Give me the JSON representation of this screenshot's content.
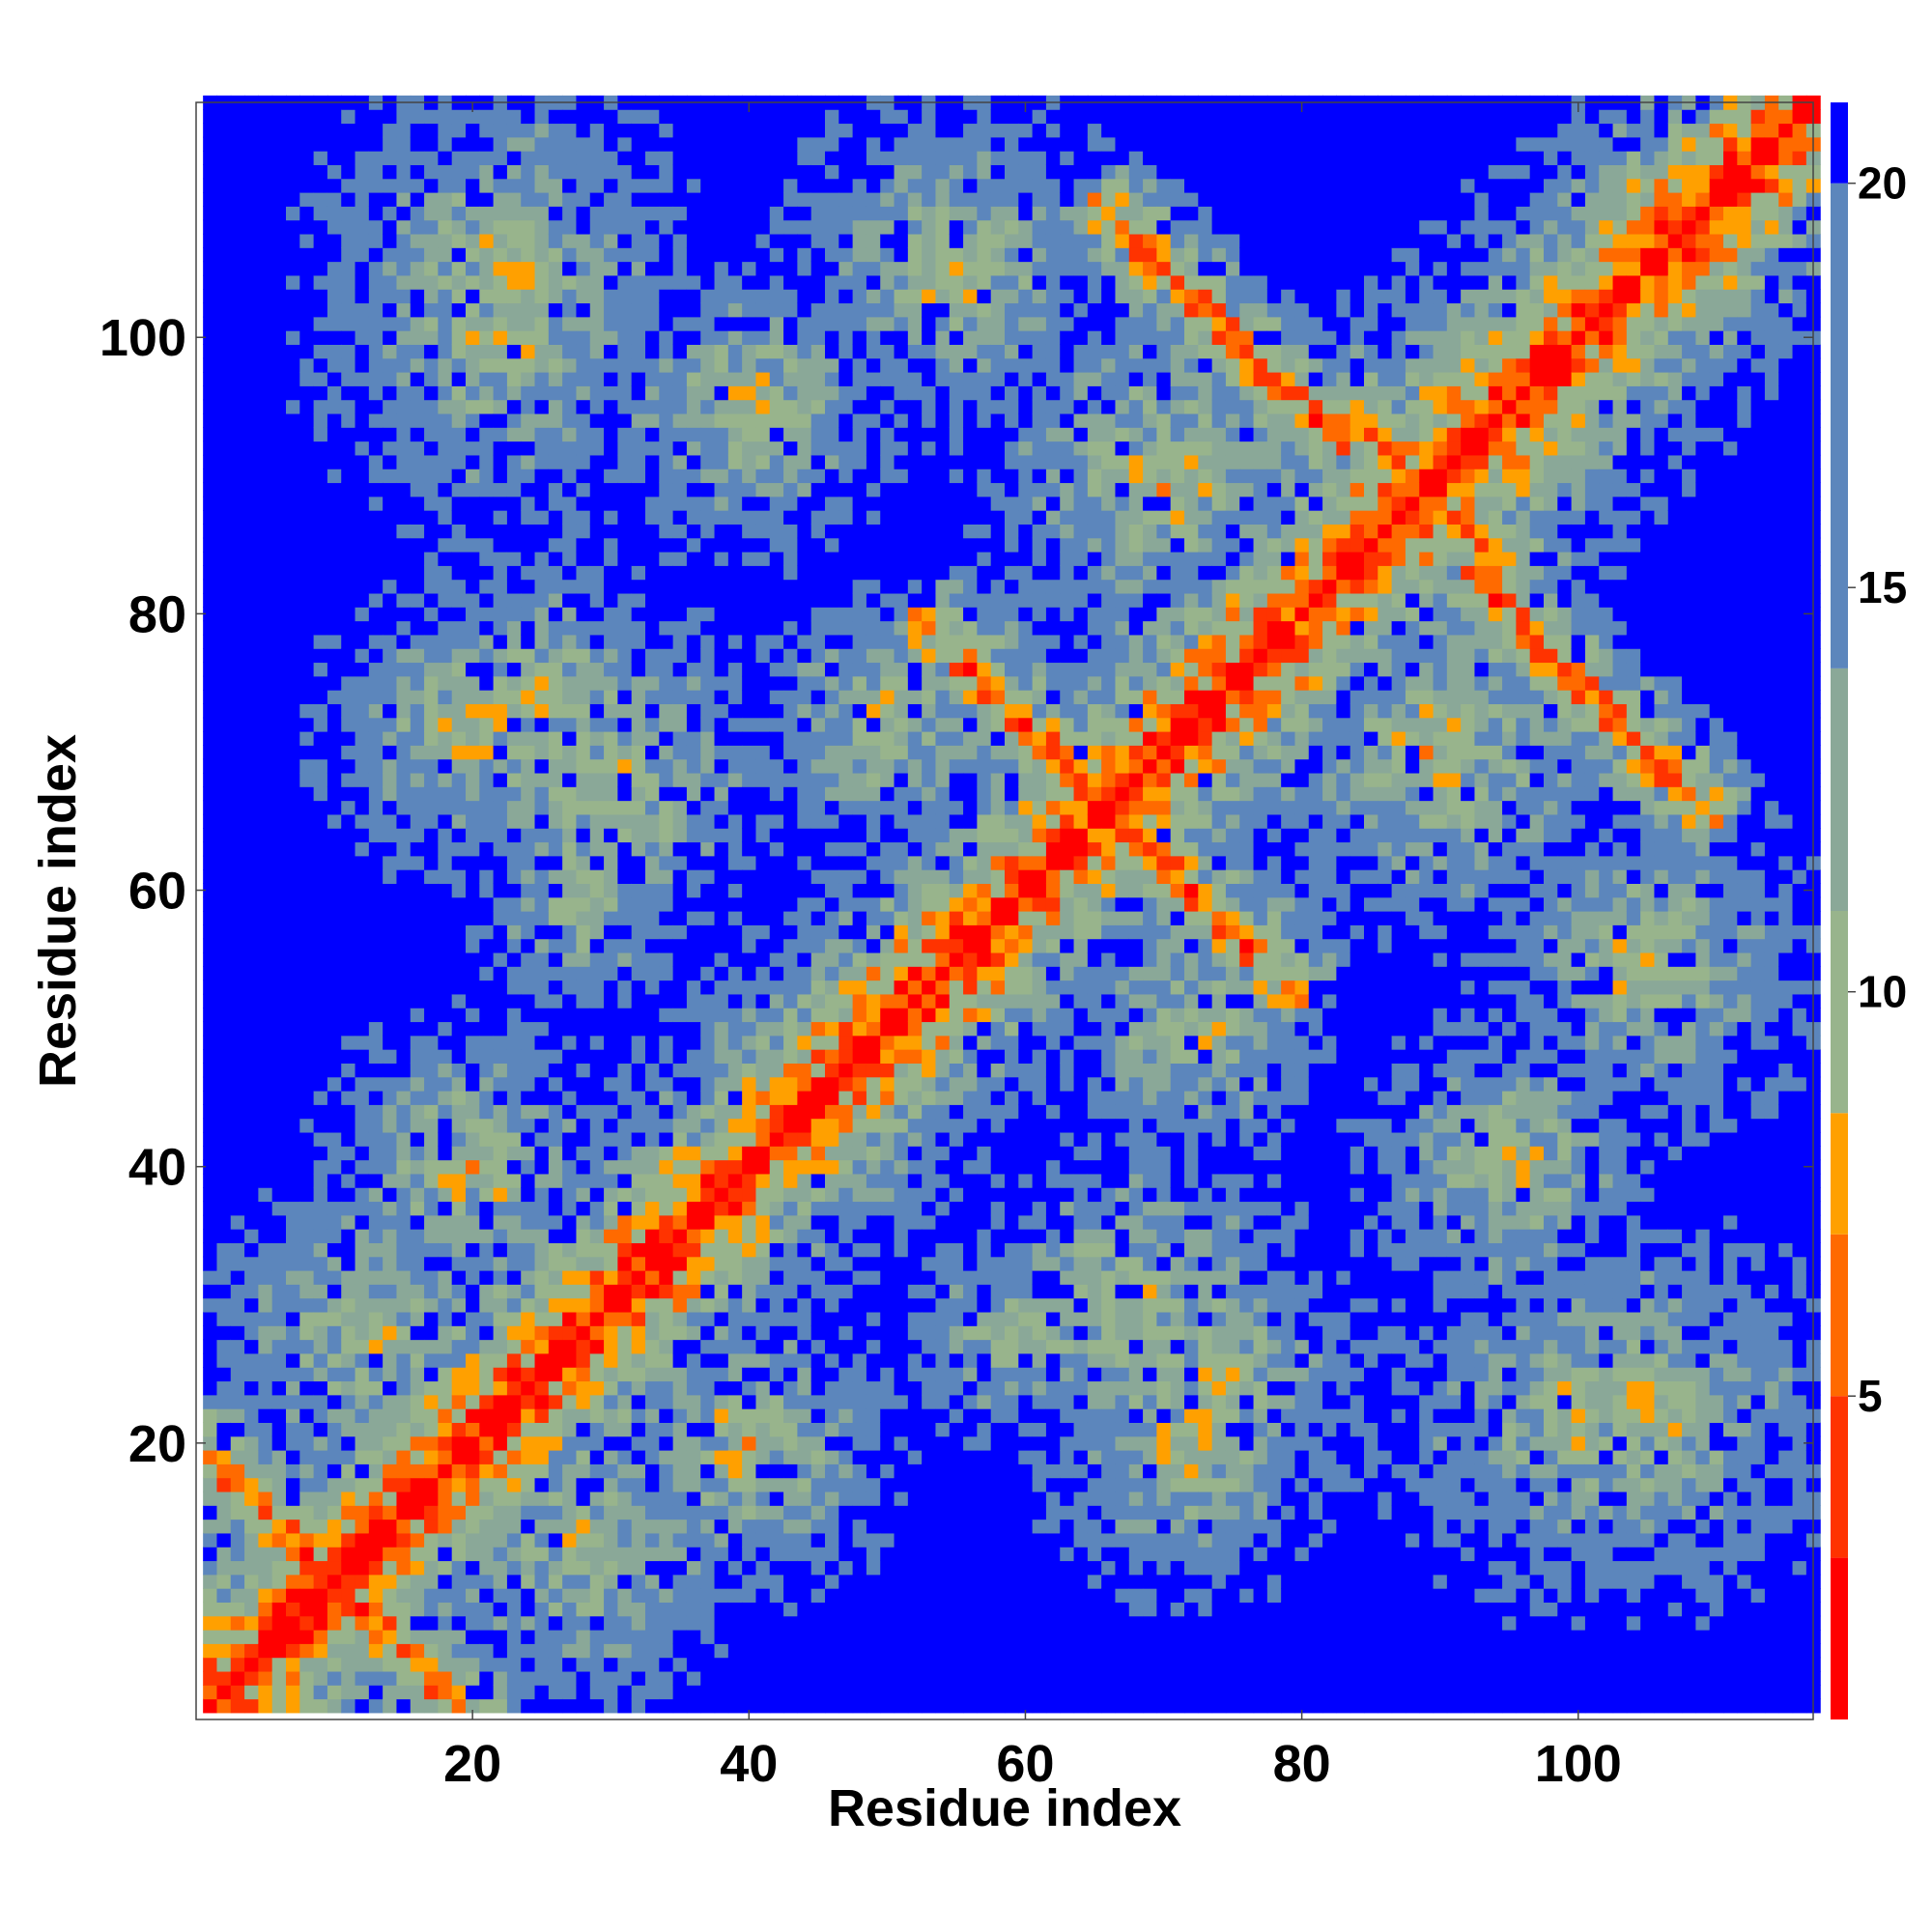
{
  "chart_data": {
    "type": "heatmap",
    "title": "",
    "xlabel": "Residue index",
    "ylabel": "Residue index",
    "n_residues": 117,
    "xlim": [
      1,
      117
    ],
    "ylim": [
      1,
      117
    ],
    "x_ticks": [
      20,
      40,
      60,
      80,
      100
    ],
    "y_ticks": [
      20,
      40,
      60,
      80,
      100
    ],
    "x_tick_labels": [
      "20",
      "40",
      "60",
      "80",
      "100"
    ],
    "y_tick_labels": [
      "20",
      "40",
      "60",
      "80",
      "100"
    ],
    "colorbar": {
      "range": [
        1,
        21
      ],
      "ticks": [
        5,
        10,
        15,
        20
      ],
      "tick_labels": [
        "5",
        "10",
        "15",
        "20"
      ],
      "colors": [
        "#ff0000",
        "#ff3300",
        "#ff6a00",
        "#ffa000",
        "#98b48c",
        "#8aa898",
        "#5c86bc",
        "#0000ff"
      ],
      "bounds": [
        1,
        3,
        5,
        7,
        8.5,
        11,
        14,
        20
      ]
    },
    "structure_note": "symmetric distance matrix: main diagonal ~3.8; antiparallel contacts crossing near (66,66) and (101,74); cap value 21"
  }
}
